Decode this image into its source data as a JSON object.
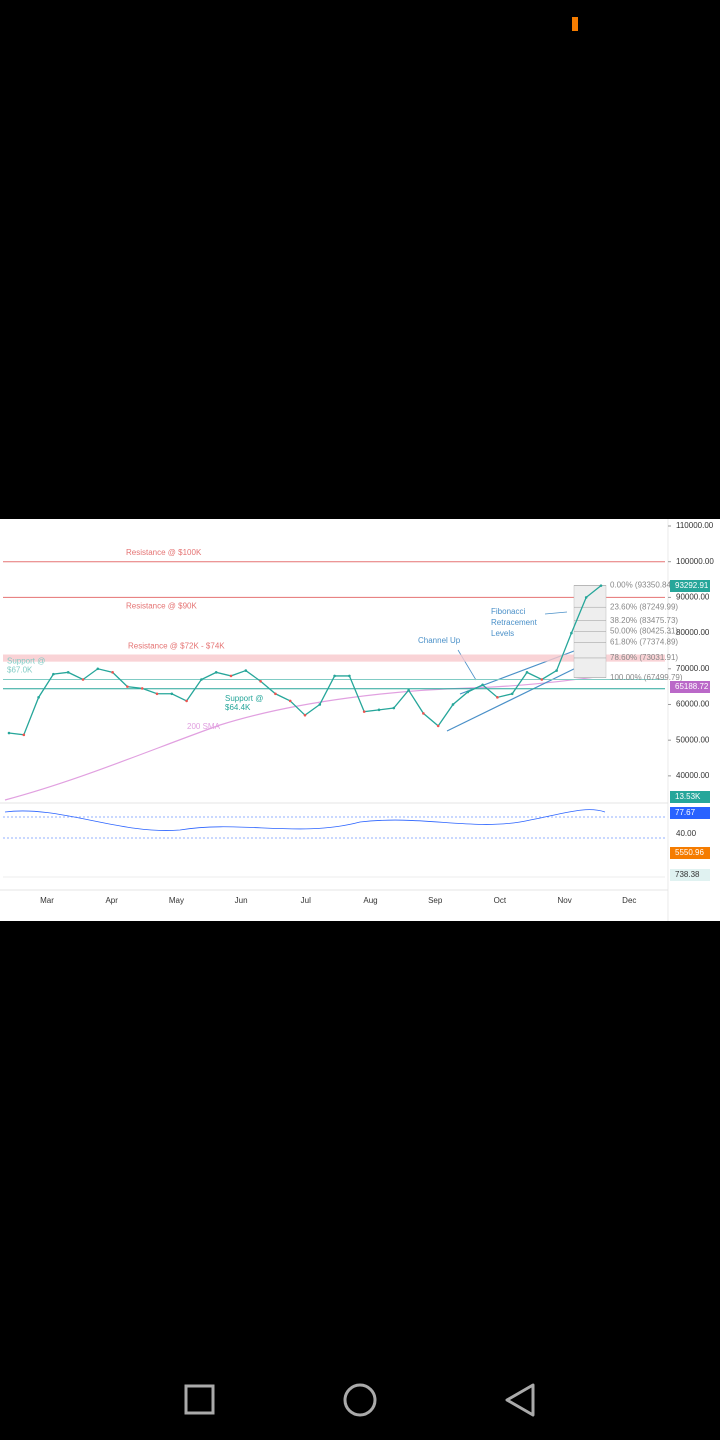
{
  "chart_data": {
    "type": "line",
    "color": "#26a69a",
    "months": [
      "Mar",
      "Apr",
      "May",
      "Jun",
      "Jul",
      "Aug",
      "Sep",
      "Oct",
      "Nov",
      "Dec"
    ],
    "values": [
      52000,
      51500,
      62000,
      68500,
      69000,
      67000,
      70000,
      69000,
      65000,
      64500,
      63000,
      63000,
      61000,
      67000,
      69000,
      68000,
      69500,
      66500,
      63000,
      61000,
      57000,
      60000,
      68000,
      68000,
      58000,
      58500,
      59000,
      64000,
      57500,
      54000,
      60000,
      63500,
      65500,
      62000,
      63000,
      69000,
      67000,
      69500,
      80000,
      90000,
      93292.91
    ],
    "ylim": [
      32400,
      110000
    ],
    "yticks": [
      {
        "value": 110000,
        "label": "110000.00"
      },
      {
        "value": 100000,
        "label": "100000.00"
      },
      {
        "value": 90000,
        "label": "90000.00"
      },
      {
        "value": 80000,
        "label": "80000.00"
      },
      {
        "value": 70000,
        "label": "70000.00"
      },
      {
        "value": 60000,
        "label": "60000.00"
      },
      {
        "value": 50000,
        "label": "50000.00"
      },
      {
        "value": 40000,
        "label": "40000.00"
      }
    ],
    "levels": [
      {
        "name": "Resistance @ $100K",
        "value": 100000,
        "color": "#e57373"
      },
      {
        "name": "Resistance @ $90K",
        "value": 90000,
        "color": "#e57373"
      },
      {
        "name": "Support @ $67.0K",
        "value": 67000,
        "color": "#80cbc4"
      },
      {
        "name": "Support @ $64.4K",
        "value": 64400,
        "color": "#26a69a"
      }
    ],
    "band": {
      "name": "Resistance @ $72K - $74K",
      "range": [
        72000,
        74000
      ],
      "color": "#f8c8cc"
    },
    "annotations": [
      "200 SMA",
      "Channel Up",
      "Fibonacci",
      "Retracement",
      "Levels"
    ],
    "fib": [
      {
        "value": 93350.84,
        "label": "0.00% (93350.84)"
      },
      {
        "value": 87249.99,
        "label": "23.60% (87249.99)"
      },
      {
        "value": 83475.73,
        "label": "38.20% (83475.73)"
      },
      {
        "value": 80425.31,
        "label": "50.00% (80425.31)"
      },
      {
        "value": 77374.89,
        "label": "61.80% (77374.89)"
      },
      {
        "value": 73031.91,
        "label": "78.60% (73031.91)"
      },
      {
        "value": 67499.79,
        "label": "100.00% (67499.79)"
      }
    ],
    "tags": [
      {
        "label": "93292.91",
        "color": "#26a69a"
      },
      {
        "label": "65188.72",
        "color": "#ba68c8"
      },
      {
        "label": "13.53K",
        "color": "#26a69a"
      },
      {
        "label": "77.67",
        "color": "#2962ff"
      },
      {
        "label": "5550.96",
        "color": "#f57c00"
      },
      {
        "label": "738.38",
        "color": "#e0f2f1"
      }
    ],
    "rsi_tick": "40.00"
  }
}
